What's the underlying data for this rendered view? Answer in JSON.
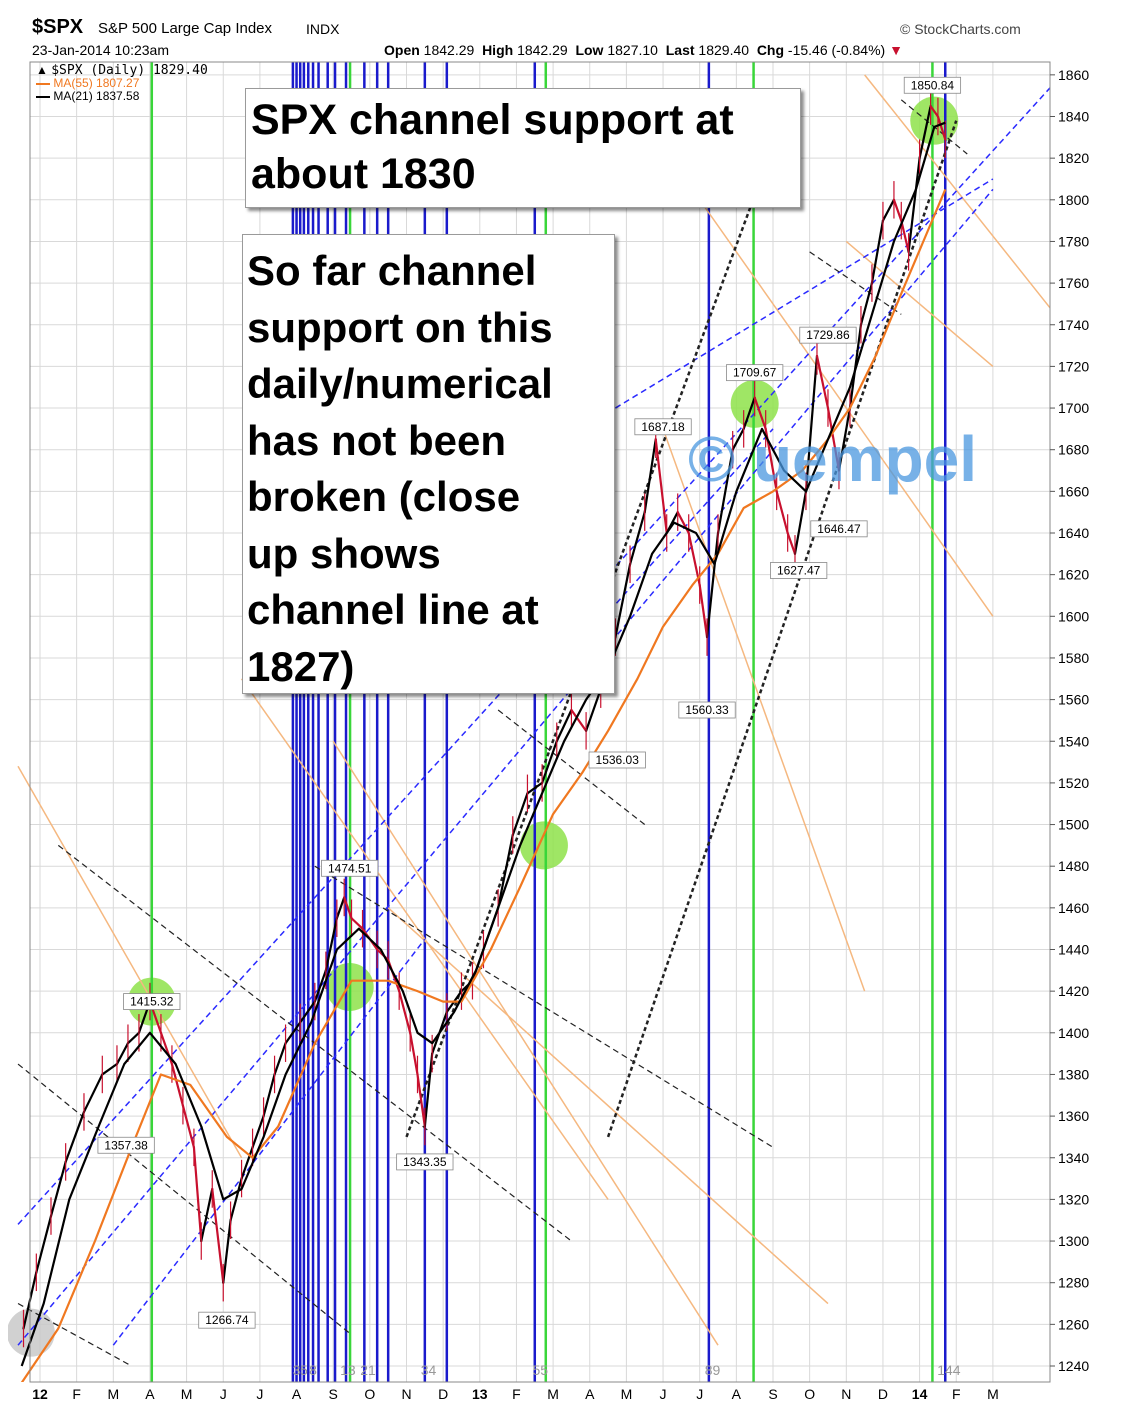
{
  "header": {
    "ticker": "$SPX",
    "name": "S&P 500 Large Cap Index",
    "exchange": "INDX",
    "watermark_site": "© StockCharts.com",
    "datetime": "23-Jan-2014 10:23am",
    "open_label": "Open",
    "open": "1842.29",
    "high_label": "High",
    "high": "1842.29",
    "low_label": "Low",
    "low": "1827.10",
    "last_label": "Last",
    "last": "1829.40",
    "chg_label": "Chg",
    "chg": "-15.46 (-0.84%)"
  },
  "legend": [
    {
      "label": "$SPX (Daily) 1829.40",
      "color": "#000000"
    },
    {
      "label": "MA(55) 1807.27",
      "color": "#f07820"
    },
    {
      "label": "MA(21) 1837.58",
      "color": "#000000"
    }
  ],
  "annotations": {
    "box1": [
      "SPX channel support at",
      "about 1830"
    ],
    "box2": [
      "So far channel",
      "support on this",
      "daily/numerical",
      "has not been",
      "broken (close",
      "up shows",
      "channel line at",
      "1827)"
    ],
    "watermark": "© uempel"
  },
  "colors": {
    "price_up": "#000000",
    "price_down": "#c8102e",
    "ma55": "#f07820",
    "ma21": "#000000",
    "blue_cycle": "#1a1acc",
    "green_cycle": "#39d639",
    "blue_channel": "#2a2aff",
    "orange_channel": "#f5b880",
    "black_channel": "#222222",
    "highlight": "#8ee24a",
    "grid": "#d9d9d9"
  },
  "chart_data": {
    "type": "line",
    "title": "$SPX S&P 500 Large Cap Index INDX",
    "xlabel": "",
    "ylabel": "",
    "ylim": [
      1230,
      1868
    ],
    "yticks": [
      1240,
      1260,
      1280,
      1300,
      1320,
      1340,
      1360,
      1380,
      1400,
      1420,
      1440,
      1460,
      1480,
      1500,
      1520,
      1540,
      1560,
      1580,
      1600,
      1620,
      1640,
      1660,
      1680,
      1700,
      1720,
      1740,
      1760,
      1780,
      1800,
      1820,
      1840,
      1860
    ],
    "xticks": [
      {
        "label": "12",
        "t": 0.5,
        "bold": true
      },
      {
        "label": "F",
        "t": 1.5
      },
      {
        "label": "M",
        "t": 2.5
      },
      {
        "label": "A",
        "t": 3.5
      },
      {
        "label": "M",
        "t": 4.5
      },
      {
        "label": "J",
        "t": 5.5
      },
      {
        "label": "J",
        "t": 6.5
      },
      {
        "label": "A",
        "t": 7.5
      },
      {
        "label": "S",
        "t": 8.5
      },
      {
        "label": "O",
        "t": 9.5
      },
      {
        "label": "N",
        "t": 10.5
      },
      {
        "label": "D",
        "t": 11.5
      },
      {
        "label": "13",
        "t": 12.5,
        "bold": true
      },
      {
        "label": "F",
        "t": 13.5
      },
      {
        "label": "M",
        "t": 14.5
      },
      {
        "label": "A",
        "t": 15.5
      },
      {
        "label": "M",
        "t": 16.5
      },
      {
        "label": "J",
        "t": 17.5
      },
      {
        "label": "J",
        "t": 18.5
      },
      {
        "label": "A",
        "t": 19.5
      },
      {
        "label": "S",
        "t": 20.5
      },
      {
        "label": "O",
        "t": 21.5
      },
      {
        "label": "N",
        "t": 22.5
      },
      {
        "label": "D",
        "t": 23.5
      },
      {
        "label": "14",
        "t": 24.5,
        "bold": true
      },
      {
        "label": "F",
        "t": 25.5
      },
      {
        "label": "M",
        "t": 26.5
      }
    ],
    "series": [
      {
        "name": "$SPX (Daily)",
        "kind": "price",
        "points": [
          [
            0.05,
            1258
          ],
          [
            0.4,
            1285
          ],
          [
            0.8,
            1312
          ],
          [
            1.2,
            1338
          ],
          [
            1.7,
            1362
          ],
          [
            2.2,
            1380
          ],
          [
            2.6,
            1385
          ],
          [
            2.9,
            1395
          ],
          [
            3.2,
            1400
          ],
          [
            3.5,
            1415
          ],
          [
            3.8,
            1400
          ],
          [
            4.1,
            1385
          ],
          [
            4.4,
            1365
          ],
          [
            4.7,
            1345
          ],
          [
            4.9,
            1300
          ],
          [
            5.2,
            1325
          ],
          [
            5.5,
            1280
          ],
          [
            5.7,
            1310
          ],
          [
            6.0,
            1330
          ],
          [
            6.3,
            1345
          ],
          [
            6.6,
            1360
          ],
          [
            6.9,
            1380
          ],
          [
            7.2,
            1395
          ],
          [
            7.6,
            1405
          ],
          [
            8.0,
            1415
          ],
          [
            8.3,
            1430
          ],
          [
            8.6,
            1455
          ],
          [
            8.8,
            1465
          ],
          [
            9.0,
            1455
          ],
          [
            9.3,
            1450
          ],
          [
            9.7,
            1440
          ],
          [
            10.0,
            1435
          ],
          [
            10.3,
            1420
          ],
          [
            10.6,
            1400
          ],
          [
            10.8,
            1380
          ],
          [
            11.0,
            1355
          ],
          [
            11.2,
            1390
          ],
          [
            11.6,
            1410
          ],
          [
            12.0,
            1420
          ],
          [
            12.3,
            1425
          ],
          [
            12.6,
            1440
          ],
          [
            13.0,
            1460
          ],
          [
            13.4,
            1495
          ],
          [
            13.8,
            1515
          ],
          [
            14.2,
            1520
          ],
          [
            14.6,
            1540
          ],
          [
            15.0,
            1555
          ],
          [
            15.4,
            1545
          ],
          [
            15.8,
            1565
          ],
          [
            16.2,
            1590
          ],
          [
            16.6,
            1625
          ],
          [
            17.0,
            1650
          ],
          [
            17.3,
            1685
          ],
          [
            17.6,
            1640
          ],
          [
            17.9,
            1650
          ],
          [
            18.2,
            1640
          ],
          [
            18.5,
            1615
          ],
          [
            18.7,
            1590
          ],
          [
            19.0,
            1640
          ],
          [
            19.4,
            1680
          ],
          [
            19.7,
            1690
          ],
          [
            20.0,
            1705
          ],
          [
            20.3,
            1690
          ],
          [
            20.6,
            1660
          ],
          [
            20.9,
            1640
          ],
          [
            21.1,
            1630
          ],
          [
            21.4,
            1660
          ],
          [
            21.7,
            1725
          ],
          [
            22.0,
            1700
          ],
          [
            22.3,
            1670
          ],
          [
            22.6,
            1700
          ],
          [
            22.9,
            1740
          ],
          [
            23.2,
            1760
          ],
          [
            23.5,
            1790
          ],
          [
            23.8,
            1800
          ],
          [
            24.0,
            1790
          ],
          [
            24.2,
            1775
          ],
          [
            24.5,
            1820
          ],
          [
            24.8,
            1845
          ],
          [
            25.0,
            1840
          ],
          [
            25.2,
            1829
          ]
        ]
      },
      {
        "name": "MA(55)",
        "kind": "ma55",
        "points": [
          [
            0,
            1232
          ],
          [
            1,
            1258
          ],
          [
            2,
            1300
          ],
          [
            3,
            1345
          ],
          [
            3.8,
            1380
          ],
          [
            4.6,
            1375
          ],
          [
            5.6,
            1350
          ],
          [
            6.3,
            1340
          ],
          [
            7,
            1355
          ],
          [
            8,
            1395
          ],
          [
            9,
            1425
          ],
          [
            10,
            1425
          ],
          [
            10.8,
            1420
          ],
          [
            11.5,
            1415
          ],
          [
            12,
            1415
          ],
          [
            12.8,
            1440
          ],
          [
            13.6,
            1470
          ],
          [
            14.5,
            1505
          ],
          [
            15.3,
            1525
          ],
          [
            16,
            1545
          ],
          [
            16.8,
            1570
          ],
          [
            17.5,
            1595
          ],
          [
            18.3,
            1615
          ],
          [
            19,
            1630
          ],
          [
            19.7,
            1652
          ],
          [
            20.5,
            1660
          ],
          [
            21.3,
            1670
          ],
          [
            22,
            1685
          ],
          [
            22.6,
            1700
          ],
          [
            23.3,
            1725
          ],
          [
            24,
            1755
          ],
          [
            24.6,
            1780
          ],
          [
            25.2,
            1805
          ]
        ]
      },
      {
        "name": "MA(21)",
        "kind": "ma21",
        "points": [
          [
            0,
            1240
          ],
          [
            0.6,
            1270
          ],
          [
            1.3,
            1320
          ],
          [
            2.1,
            1355
          ],
          [
            2.8,
            1385
          ],
          [
            3.5,
            1400
          ],
          [
            4.2,
            1385
          ],
          [
            4.9,
            1355
          ],
          [
            5.5,
            1320
          ],
          [
            6.0,
            1325
          ],
          [
            6.6,
            1350
          ],
          [
            7.2,
            1380
          ],
          [
            7.9,
            1405
          ],
          [
            8.6,
            1440
          ],
          [
            9.2,
            1450
          ],
          [
            9.8,
            1440
          ],
          [
            10.4,
            1420
          ],
          [
            10.8,
            1400
          ],
          [
            11.2,
            1395
          ],
          [
            11.8,
            1410
          ],
          [
            12.4,
            1430
          ],
          [
            13.0,
            1460
          ],
          [
            13.6,
            1490
          ],
          [
            14.2,
            1515
          ],
          [
            14.8,
            1540
          ],
          [
            15.4,
            1560
          ],
          [
            16.0,
            1575
          ],
          [
            16.6,
            1600
          ],
          [
            17.2,
            1630
          ],
          [
            17.8,
            1645
          ],
          [
            18.4,
            1640
          ],
          [
            18.9,
            1625
          ],
          [
            19.5,
            1660
          ],
          [
            20.2,
            1690
          ],
          [
            20.8,
            1670
          ],
          [
            21.4,
            1660
          ],
          [
            22.0,
            1685
          ],
          [
            22.6,
            1710
          ],
          [
            23.2,
            1745
          ],
          [
            23.8,
            1780
          ],
          [
            24.4,
            1805
          ],
          [
            24.9,
            1835
          ],
          [
            25.2,
            1837
          ]
        ]
      }
    ],
    "peak_labels": [
      {
        "text": "1415.32",
        "t": 3.55,
        "v": 1415
      },
      {
        "text": "1357.38",
        "t": 2.85,
        "v": 1346
      },
      {
        "text": "1266.74",
        "t": 5.6,
        "v": 1262
      },
      {
        "text": "1474.51",
        "t": 8.95,
        "v": 1479
      },
      {
        "text": "1343.35",
        "t": 11.0,
        "v": 1338
      },
      {
        "text": "1536.03",
        "t": 16.25,
        "v": 1531
      },
      {
        "text": "1560.33",
        "t": 18.7,
        "v": 1555
      },
      {
        "text": "1687.18",
        "t": 17.5,
        "v": 1691
      },
      {
        "text": "1709.67",
        "t": 20.0,
        "v": 1717
      },
      {
        "text": "1627.47",
        "t": 21.2,
        "v": 1622
      },
      {
        "text": "1646.47",
        "t": 22.3,
        "v": 1642
      },
      {
        "text": "1729.86",
        "t": 22.0,
        "v": 1735
      },
      {
        "text": "1850.84",
        "t": 24.85,
        "v": 1855
      }
    ],
    "cycle_lines": {
      "blue": [
        7.4,
        7.5,
        7.6,
        7.7,
        7.82,
        7.95,
        8.1,
        8.35,
        8.55,
        8.85,
        9.35,
        9.7,
        10.0,
        11.0,
        11.6,
        14.0,
        18.75,
        25.2
      ],
      "green": [
        3.55,
        8.96,
        14.3,
        19.97,
        24.85
      ],
      "labels": [
        {
          "text": "3",
          "t": 7.5
        },
        {
          "text": "5",
          "t": 7.7
        },
        {
          "text": "8",
          "t": 7.95
        },
        {
          "text": "13",
          "t": 8.9
        },
        {
          "text": "21",
          "t": 9.45
        },
        {
          "text": "34",
          "t": 11.1
        },
        {
          "text": "55",
          "t": 14.15
        },
        {
          "text": "89",
          "t": 18.85
        },
        {
          "text": "144",
          "t": 25.3
        }
      ]
    },
    "channels": {
      "blue_dashed": [
        [
          [
            -0.1,
            1308
          ],
          [
            29,
            1872
          ]
        ],
        [
          [
            -0.1,
            1250
          ],
          [
            26.5,
            1805
          ]
        ],
        [
          [
            2.5,
            1250
          ],
          [
            11,
            1445
          ]
        ],
        [
          [
            15.5,
            1592
          ],
          [
            20.5,
            1690
          ]
        ],
        [
          [
            16.2,
            1700
          ],
          [
            26.5,
            1810
          ]
        ]
      ],
      "orange": [
        [
          [
            -0.1,
            1528
          ],
          [
            6.0,
            1340
          ]
        ],
        [
          [
            6.0,
            1570
          ],
          [
            16.0,
            1320
          ]
        ],
        [
          [
            8.5,
            1540
          ],
          [
            19.0,
            1250
          ]
        ],
        [
          [
            10.0,
            1460
          ],
          [
            22.0,
            1270
          ]
        ],
        [
          [
            18.5,
            1800
          ],
          [
            26.5,
            1600
          ]
        ],
        [
          [
            22.5,
            1780
          ],
          [
            26.5,
            1720
          ]
        ],
        [
          [
            23.0,
            1860
          ],
          [
            28.2,
            1745
          ]
        ],
        [
          [
            17.5,
            1690
          ],
          [
            23.0,
            1420
          ]
        ]
      ],
      "black": [
        [
          [
            1.0,
            1490
          ],
          [
            15.0,
            1300
          ]
        ],
        [
          [
            -0.1,
            1270
          ],
          [
            3.0,
            1240
          ]
        ],
        [
          [
            -0.1,
            1385
          ],
          [
            9.0,
            1255
          ]
        ],
        [
          [
            8.0,
            1480
          ],
          [
            20.5,
            1345
          ]
        ],
        [
          [
            13.0,
            1555
          ],
          [
            17.0,
            1500
          ]
        ],
        [
          [
            21.5,
            1775
          ],
          [
            24.0,
            1745
          ]
        ],
        [
          [
            24.0,
            1848
          ],
          [
            25.8,
            1822
          ]
        ]
      ],
      "black_rising": [
        [
          [
            10.5,
            1350
          ],
          [
            20.0,
            1802
          ]
        ],
        [
          [
            16.0,
            1350
          ],
          [
            25.5,
            1838
          ]
        ]
      ]
    },
    "highlights": [
      {
        "t": 3.55,
        "v": 1415,
        "color": "#8ee24a"
      },
      {
        "t": 8.95,
        "v": 1422,
        "color": "#8ee24a"
      },
      {
        "t": 14.25,
        "v": 1490,
        "color": "#8ee24a"
      },
      {
        "t": 20.0,
        "v": 1702,
        "color": "#8ee24a"
      },
      {
        "t": 24.9,
        "v": 1838,
        "color": "#8ee24a"
      },
      {
        "t": 0.25,
        "v": 1256,
        "color": "#c9c9c9"
      }
    ]
  }
}
